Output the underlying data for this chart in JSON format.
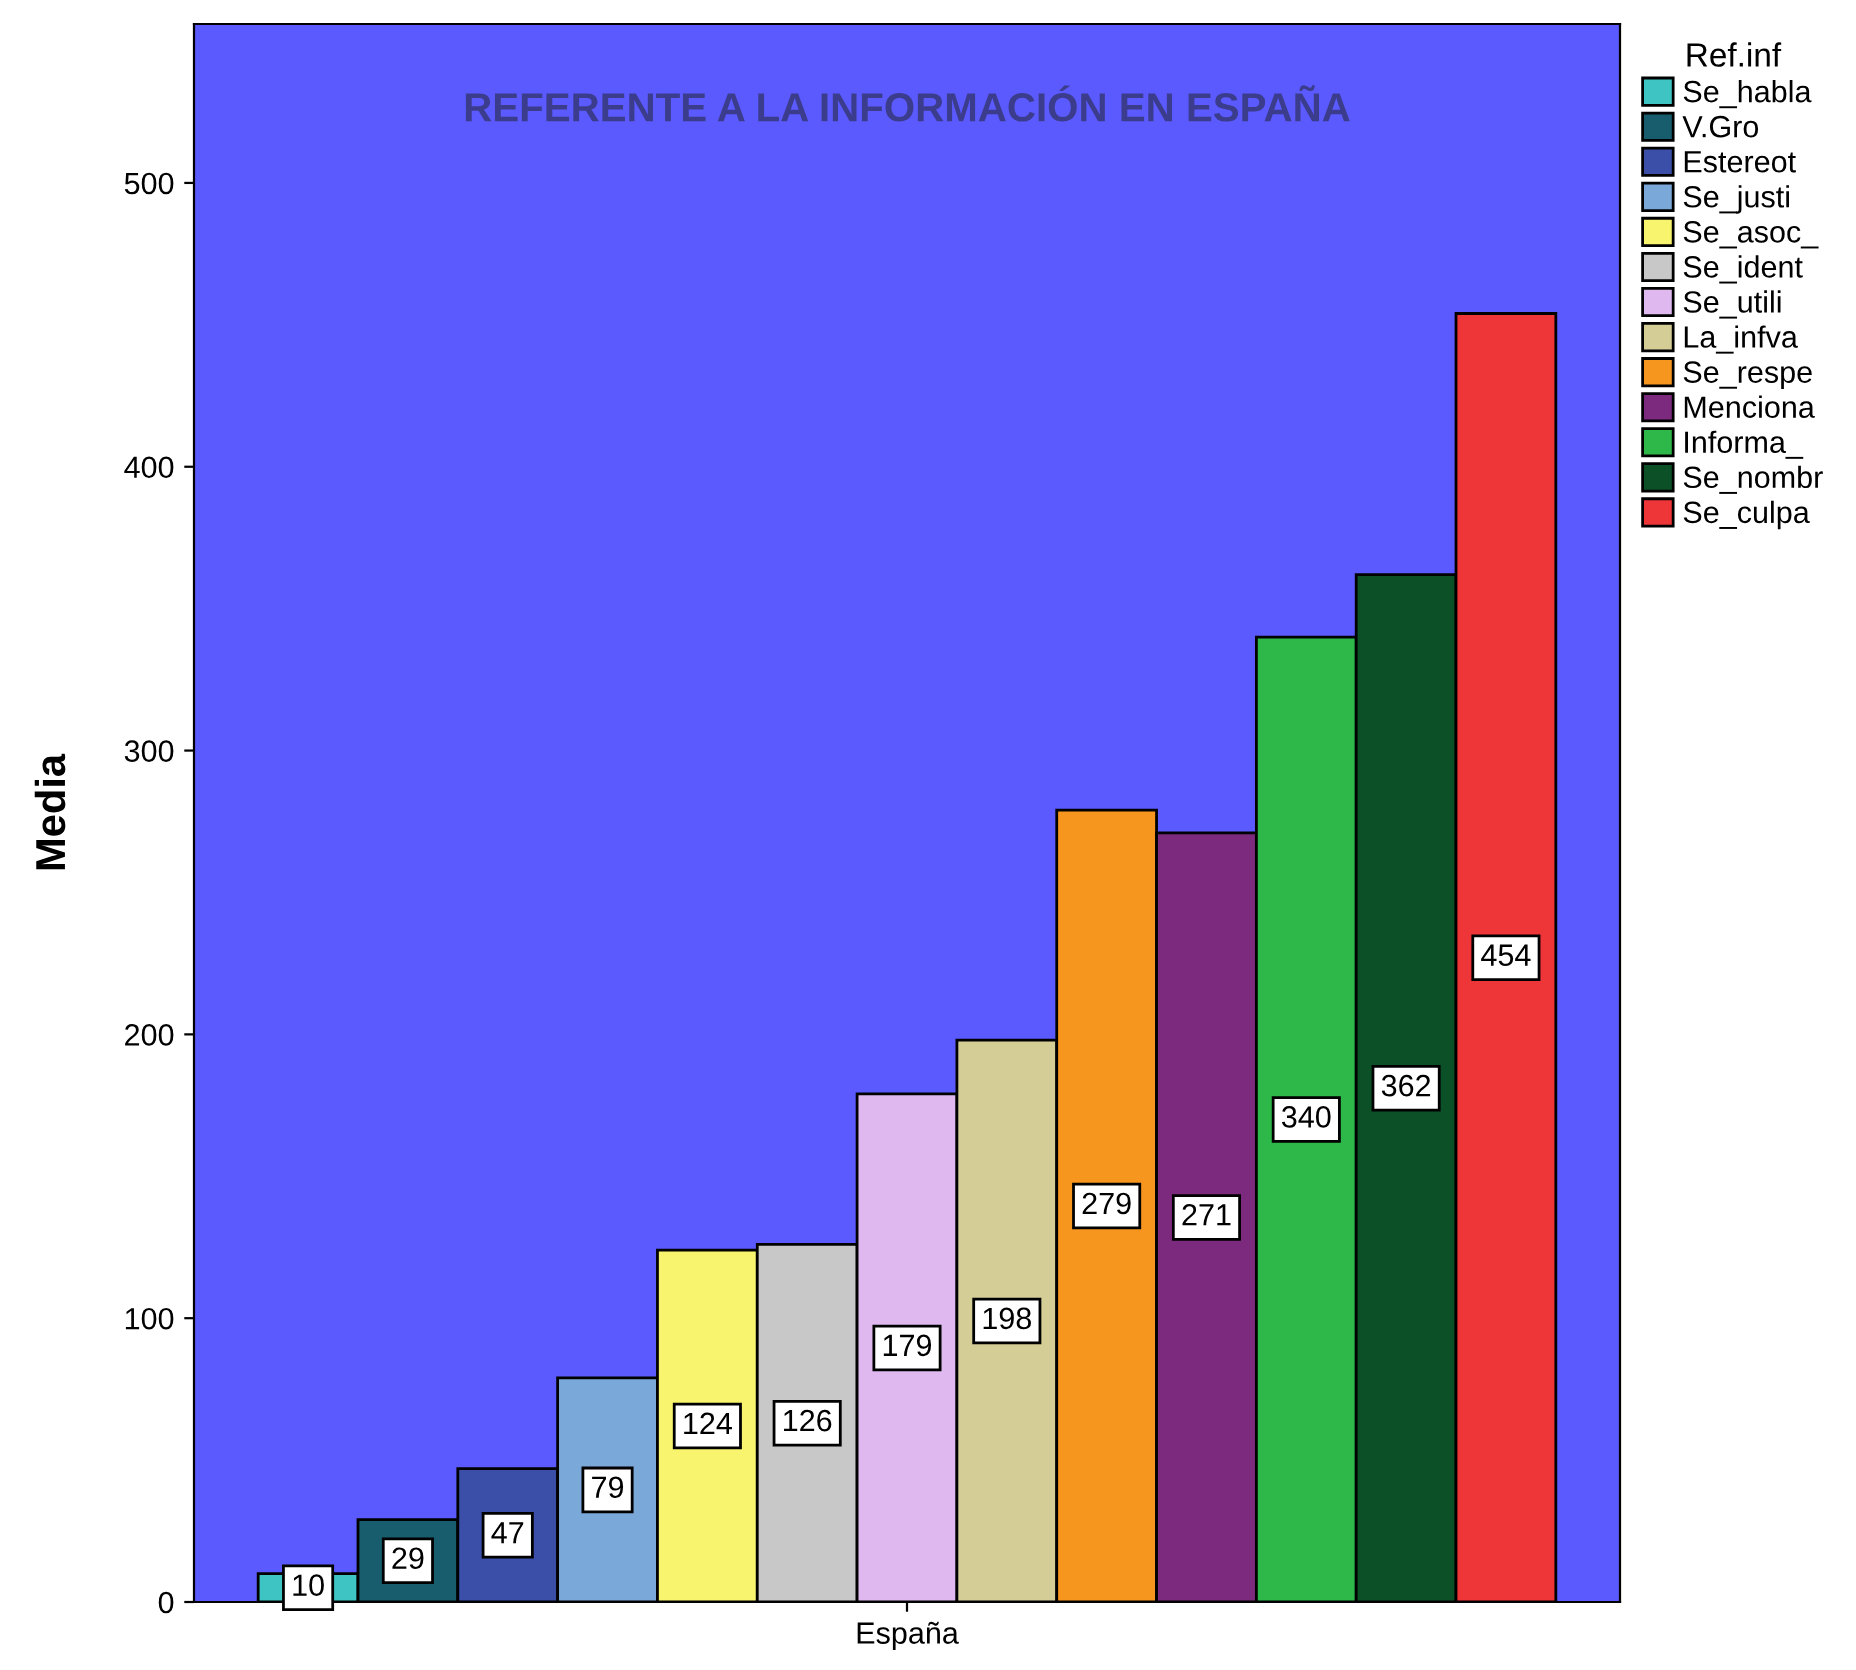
{
  "chart_data": {
    "type": "bar",
    "title": "REFERENTE A LA INFORMACIÓN EN ESPAÑA",
    "ylabel": "Media",
    "legend_title": "Ref.inf",
    "categories": [
      "España"
    ],
    "series": [
      {
        "name": "Se_habla",
        "color": "#3fc4c4",
        "values": [
          10
        ]
      },
      {
        "name": "V.Gro",
        "color": "#175d6e",
        "values": [
          29
        ]
      },
      {
        "name": "Estereot",
        "color": "#3b4fa8",
        "values": [
          47
        ]
      },
      {
        "name": "Se_justi",
        "color": "#7aa8d8",
        "values": [
          79
        ]
      },
      {
        "name": "Se_asoc_",
        "color": "#f8f46e",
        "values": [
          124
        ]
      },
      {
        "name": "Se_ident",
        "color": "#c8c8c8",
        "values": [
          126
        ]
      },
      {
        "name": "Se_utili",
        "color": "#dfb8ef",
        "values": [
          179
        ]
      },
      {
        "name": "La_infva",
        "color": "#d4cd96",
        "values": [
          198
        ]
      },
      {
        "name": "Se_respe",
        "color": "#f7961e",
        "values": [
          279
        ]
      },
      {
        "name": "Menciona",
        "color": "#7b2a7e",
        "values": [
          271
        ]
      },
      {
        "name": "Informa_",
        "color": "#2eb84a",
        "values": [
          340
        ]
      },
      {
        "name": "Se_nombr",
        "color": "#0c5028",
        "values": [
          362
        ]
      },
      {
        "name": "Se_culpa",
        "color": "#ee3538",
        "values": [
          454
        ]
      }
    ],
    "ylim": [
      0,
      556
    ],
    "yticks": [
      0,
      100,
      200,
      300,
      400,
      500
    ],
    "data_labels": true,
    "legend": "right",
    "grid": false
  }
}
